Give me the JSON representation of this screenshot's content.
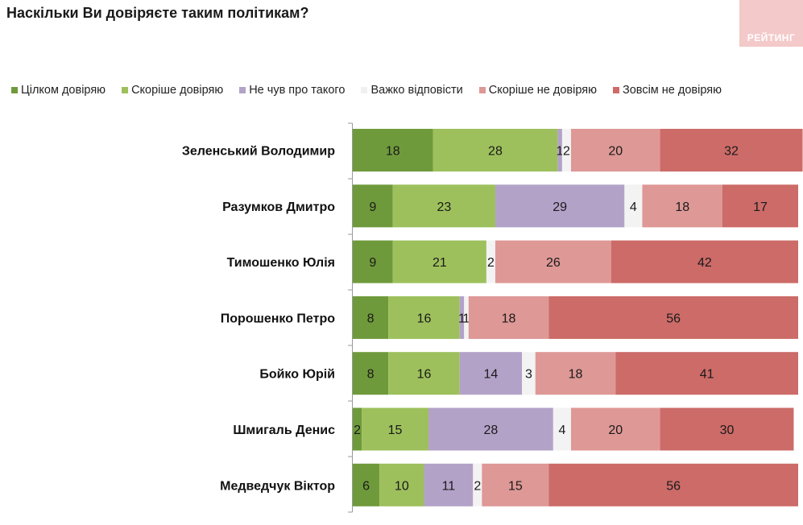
{
  "logo": {
    "text": "РЕЙТИНГ"
  },
  "colors": [
    "#6f9a3b",
    "#9dc05c",
    "#b3a2c8",
    "#f3f3f3",
    "#de9896",
    "#cc6b68"
  ],
  "chart_data": {
    "type": "bar",
    "orientation": "horizontal",
    "stacked": true,
    "title": "Наскільки Ви довіряєте таким політикам?",
    "legend_position": "top",
    "xlim": [
      0,
      100
    ],
    "categories": [
      "Зеленський Володимир",
      "Разумков Дмитро",
      "Тимошенко Юлія",
      "Порошенко Петро",
      "Бойко Юрій",
      "Шмигаль Денис",
      "Медведчук Віктор"
    ],
    "series": [
      {
        "name": "Цілком довіряю",
        "values": [
          18,
          9,
          9,
          8,
          8,
          2,
          6
        ]
      },
      {
        "name": "Скоріше довіряю",
        "values": [
          28,
          23,
          21,
          16,
          16,
          15,
          10
        ]
      },
      {
        "name": "Не чув про такого",
        "values": [
          1,
          29,
          0,
          1,
          14,
          28,
          11
        ]
      },
      {
        "name": "Важко відповісти",
        "values": [
          2,
          4,
          2,
          1,
          3,
          4,
          2
        ]
      },
      {
        "name": "Скоріше не довіряю",
        "values": [
          20,
          18,
          26,
          18,
          18,
          20,
          15
        ]
      },
      {
        "name": "Зовсім не довіряю",
        "values": [
          32,
          17,
          42,
          56,
          41,
          30,
          56
        ]
      }
    ]
  }
}
